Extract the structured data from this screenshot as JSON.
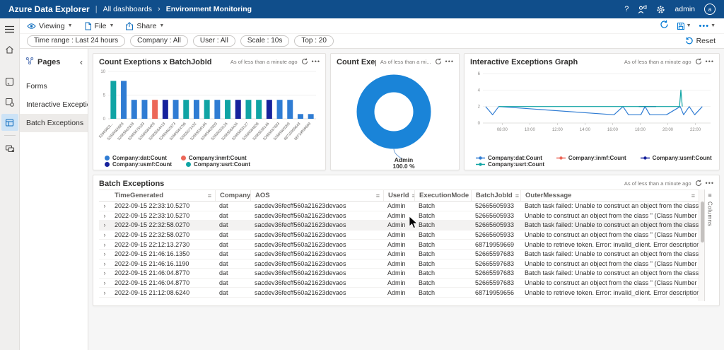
{
  "header": {
    "app_title": "Azure Data Explorer",
    "separator": "|",
    "breadcrumb_root": "All dashboards",
    "breadcrumb_current": "Environment Monitoring",
    "help_label": "?",
    "user_name": "admin",
    "avatar_initial": "a"
  },
  "toolbar": {
    "viewing_label": "Viewing",
    "file_label": "File",
    "share_label": "Share"
  },
  "filters": {
    "pills": [
      "Time range : Last 24 hours",
      "Company : All",
      "User : All",
      "Scale : 10s",
      "Top : 20"
    ],
    "reset_label": "Reset"
  },
  "sidebar": {
    "pages_title": "Pages",
    "items": [
      {
        "label": "Forms",
        "selected": false
      },
      {
        "label": "Interactive Exceptions",
        "selected": false
      },
      {
        "label": "Batch Exceptions",
        "selected": true
      }
    ]
  },
  "tiles": {
    "freshness": "As of less than a minute ago",
    "freshness_short": "As of less than a mi..."
  },
  "colors": {
    "header_bg": "#104e8b",
    "accent": "#0078d4",
    "series": {
      "dat": "#2f7cd3",
      "inmf": "#ec6758",
      "usmf": "#16219c",
      "usrt": "#10a4a4"
    },
    "donut": "#1a84d8"
  },
  "chart_data": [
    {
      "type": "bar",
      "title": "Count Exeptions x BatchJobId",
      "categories": [
        "52665601...",
        "52665605683",
        "52665602933",
        "52665575183",
        "52665564483",
        "52665564413",
        "52665602973",
        "52665564796",
        "52665571432",
        "52665556165",
        "52665602683",
        "52665553126",
        "52665564434",
        "52665553127",
        "52665564838",
        "52665536146",
        "52665597683",
        "52665605393",
        "68719959643",
        "68719959669"
      ],
      "values": [
        8,
        8,
        4,
        4,
        4,
        4,
        4,
        4,
        4,
        4,
        4,
        4,
        4,
        4,
        4,
        4,
        4,
        4,
        1,
        1
      ],
      "bar_series": [
        "usrt",
        "dat",
        "dat",
        "dat",
        "inmf",
        "usmf",
        "dat",
        "usrt",
        "dat",
        "usrt",
        "dat",
        "usrt",
        "usmf",
        "usrt",
        "usrt",
        "usmf",
        "dat",
        "dat",
        "dat",
        "dat"
      ],
      "ylim": [
        0,
        10
      ],
      "yticks": [
        0,
        5,
        10
      ],
      "legend": [
        {
          "name": "Company:dat:Count",
          "key": "dat"
        },
        {
          "name": "Company:inmf:Count",
          "key": "inmf"
        },
        {
          "name": "Company:usmf:Count",
          "key": "usmf"
        },
        {
          "name": "Company:usrt:Count",
          "key": "usrt"
        }
      ]
    },
    {
      "type": "pie",
      "title": "Count Exeptions x UserId",
      "labels": [
        "Admin"
      ],
      "values": [
        100.0
      ],
      "value_labels": [
        "100.0 %"
      ],
      "donut": true
    },
    {
      "type": "line",
      "title": "Interactive Exceptions Graph",
      "xticks": [
        "08:00",
        "10:00",
        "12:00",
        "14:00",
        "16:00",
        "18:00",
        "20:00",
        "22:00"
      ],
      "xrange_hours": [
        6.6,
        23.1
      ],
      "yticks": [
        0,
        2,
        4,
        6
      ],
      "ylim": [
        0,
        6
      ],
      "series": [
        {
          "name": "Company:dat:Count",
          "key": "dat",
          "points": [
            [
              6.8,
              2
            ],
            [
              7.3,
              1
            ],
            [
              7.75,
              2
            ],
            [
              16.1,
              1
            ],
            [
              16.75,
              2
            ],
            [
              17.15,
              1
            ],
            [
              18.05,
              1
            ],
            [
              18.35,
              2
            ],
            [
              18.7,
              1
            ],
            [
              19.9,
              1
            ],
            [
              20.9,
              2
            ],
            [
              21.15,
              1
            ],
            [
              21.55,
              2
            ],
            [
              21.95,
              1
            ],
            [
              22.5,
              2
            ]
          ]
        },
        {
          "name": "Company:inmf:Count",
          "key": "inmf",
          "points": []
        },
        {
          "name": "Company:usmf:Count",
          "key": "usmf",
          "points": [
            [
              17.9,
              2
            ],
            [
              19.15,
              2
            ]
          ]
        },
        {
          "name": "Company:usrt:Count",
          "key": "usrt",
          "points": [
            [
              7.75,
              2
            ],
            [
              20.85,
              2
            ],
            [
              20.95,
              4
            ],
            [
              21.05,
              2
            ]
          ]
        }
      ],
      "legend": [
        {
          "name": "Company:dat:Count",
          "key": "dat"
        },
        {
          "name": "Company:inmf:Count",
          "key": "inmf"
        },
        {
          "name": "Company:usmf:Count",
          "key": "usmf"
        },
        {
          "name": "Company:usrt:Count",
          "key": "usrt"
        }
      ]
    }
  ],
  "table": {
    "title": "Batch Exceptions",
    "columns": [
      "TimeGenerated",
      "Company",
      "AOS",
      "UserId",
      "ExecutionMode",
      "BatchJobId",
      "OuterMessage"
    ],
    "columns_panel_label": "Columns",
    "rows": [
      {
        "time": "2022-09-15 22:33:10.5270",
        "company": "dat",
        "aos": "sacdev36fecff560a21623devaos",
        "user": "Admin",
        "mode": "Batch",
        "jobId": "52665605933",
        "message": "Batch task failed: Unable to construct an object from the class '' (Class Number '50784' Job Id '52665605933' ) in the batch framework. Make sure ...",
        "highlight": false
      },
      {
        "time": "2022-09-15 22:33:10.5270",
        "company": "dat",
        "aos": "sacdev36fecff560a21623devaos",
        "user": "Admin",
        "mode": "Batch",
        "jobId": "52665605933",
        "message": "Unable to construct an object from the class '' (Class Number '50784' Job Id '52665605933' ) in the batch framework. Make sure that the X++ cod...",
        "highlight": false
      },
      {
        "time": "2022-09-15 22:32:58.0270",
        "company": "dat",
        "aos": "sacdev36fecff560a21623devaos",
        "user": "Admin",
        "mode": "Batch",
        "jobId": "52665605933",
        "message": "Batch task failed: Unable to construct an object from the class '' (Class Number '50784' Job Id '52665605933' ) in the batch framework. Make sure ...",
        "highlight": true
      },
      {
        "time": "2022-09-15 22:32:58.0270",
        "company": "dat",
        "aos": "sacdev36fecff560a21623devaos",
        "user": "Admin",
        "mode": "Batch",
        "jobId": "52665605933",
        "message": "Unable to construct an object from the class '' (Class Number '50784' Job Id '52665605933' ) in the batch framework. Make sure that the X++ cod...",
        "highlight": false
      },
      {
        "time": "2022-09-15 22:12:13.2730",
        "company": "dat",
        "aos": "sacdev36fecff560a21623devaos",
        "user": "Admin",
        "mode": "Batch",
        "jobId": "68719959669",
        "message": "Unable to retrieve token. Error: invalid_client. Error description: AOS environment 620a6d1c-169f-4798-8991-dedc082cfa77 does not exist.. Error ...",
        "highlight": false
      },
      {
        "time": "2022-09-15 21:46:16.1350",
        "company": "dat",
        "aos": "sacdev36fecff560a21623devaos",
        "user": "Admin",
        "mode": "Batch",
        "jobId": "52665597683",
        "message": "Batch task failed: Unable to construct an object from the class '' (Class Number '50784' Job Id '52665597683' ) in the batch framework. Make sure ...",
        "highlight": false
      },
      {
        "time": "2022-09-15 21:46:16.1190",
        "company": "dat",
        "aos": "sacdev36fecff560a21623devaos",
        "user": "Admin",
        "mode": "Batch",
        "jobId": "52665597683",
        "message": "Unable to construct an object from the class '' (Class Number '50784' Job Id '52665597683' ) in the batch framework. Make sure that the X++ cod...",
        "highlight": false
      },
      {
        "time": "2022-09-15 21:46:04.8770",
        "company": "dat",
        "aos": "sacdev36fecff560a21623devaos",
        "user": "Admin",
        "mode": "Batch",
        "jobId": "52665597683",
        "message": "Batch task failed: Unable to construct an object from the class '' (Class Number '50784' Job Id '52665597683' ) in the batch framework. Make sure ...",
        "highlight": false
      },
      {
        "time": "2022-09-15 21:46:04.8770",
        "company": "dat",
        "aos": "sacdev36fecff560a21623devaos",
        "user": "Admin",
        "mode": "Batch",
        "jobId": "52665597683",
        "message": "Unable to construct an object from the class '' (Class Number '50784' Job Id '52665597683' ) in the batch framework. Make sure that the X++ cod...",
        "highlight": false
      },
      {
        "time": "2022-09-15 21:12:08.6240",
        "company": "dat",
        "aos": "sacdev36fecff560a21623devaos",
        "user": "Admin",
        "mode": "Batch",
        "jobId": "68719959656",
        "message": "Unable to retrieve token. Error: invalid_client. Error description: AOS environment 620a6d1c-169f-4798-8991-dedc082cfa77 does not exist.. Error ...",
        "highlight": false
      }
    ]
  }
}
